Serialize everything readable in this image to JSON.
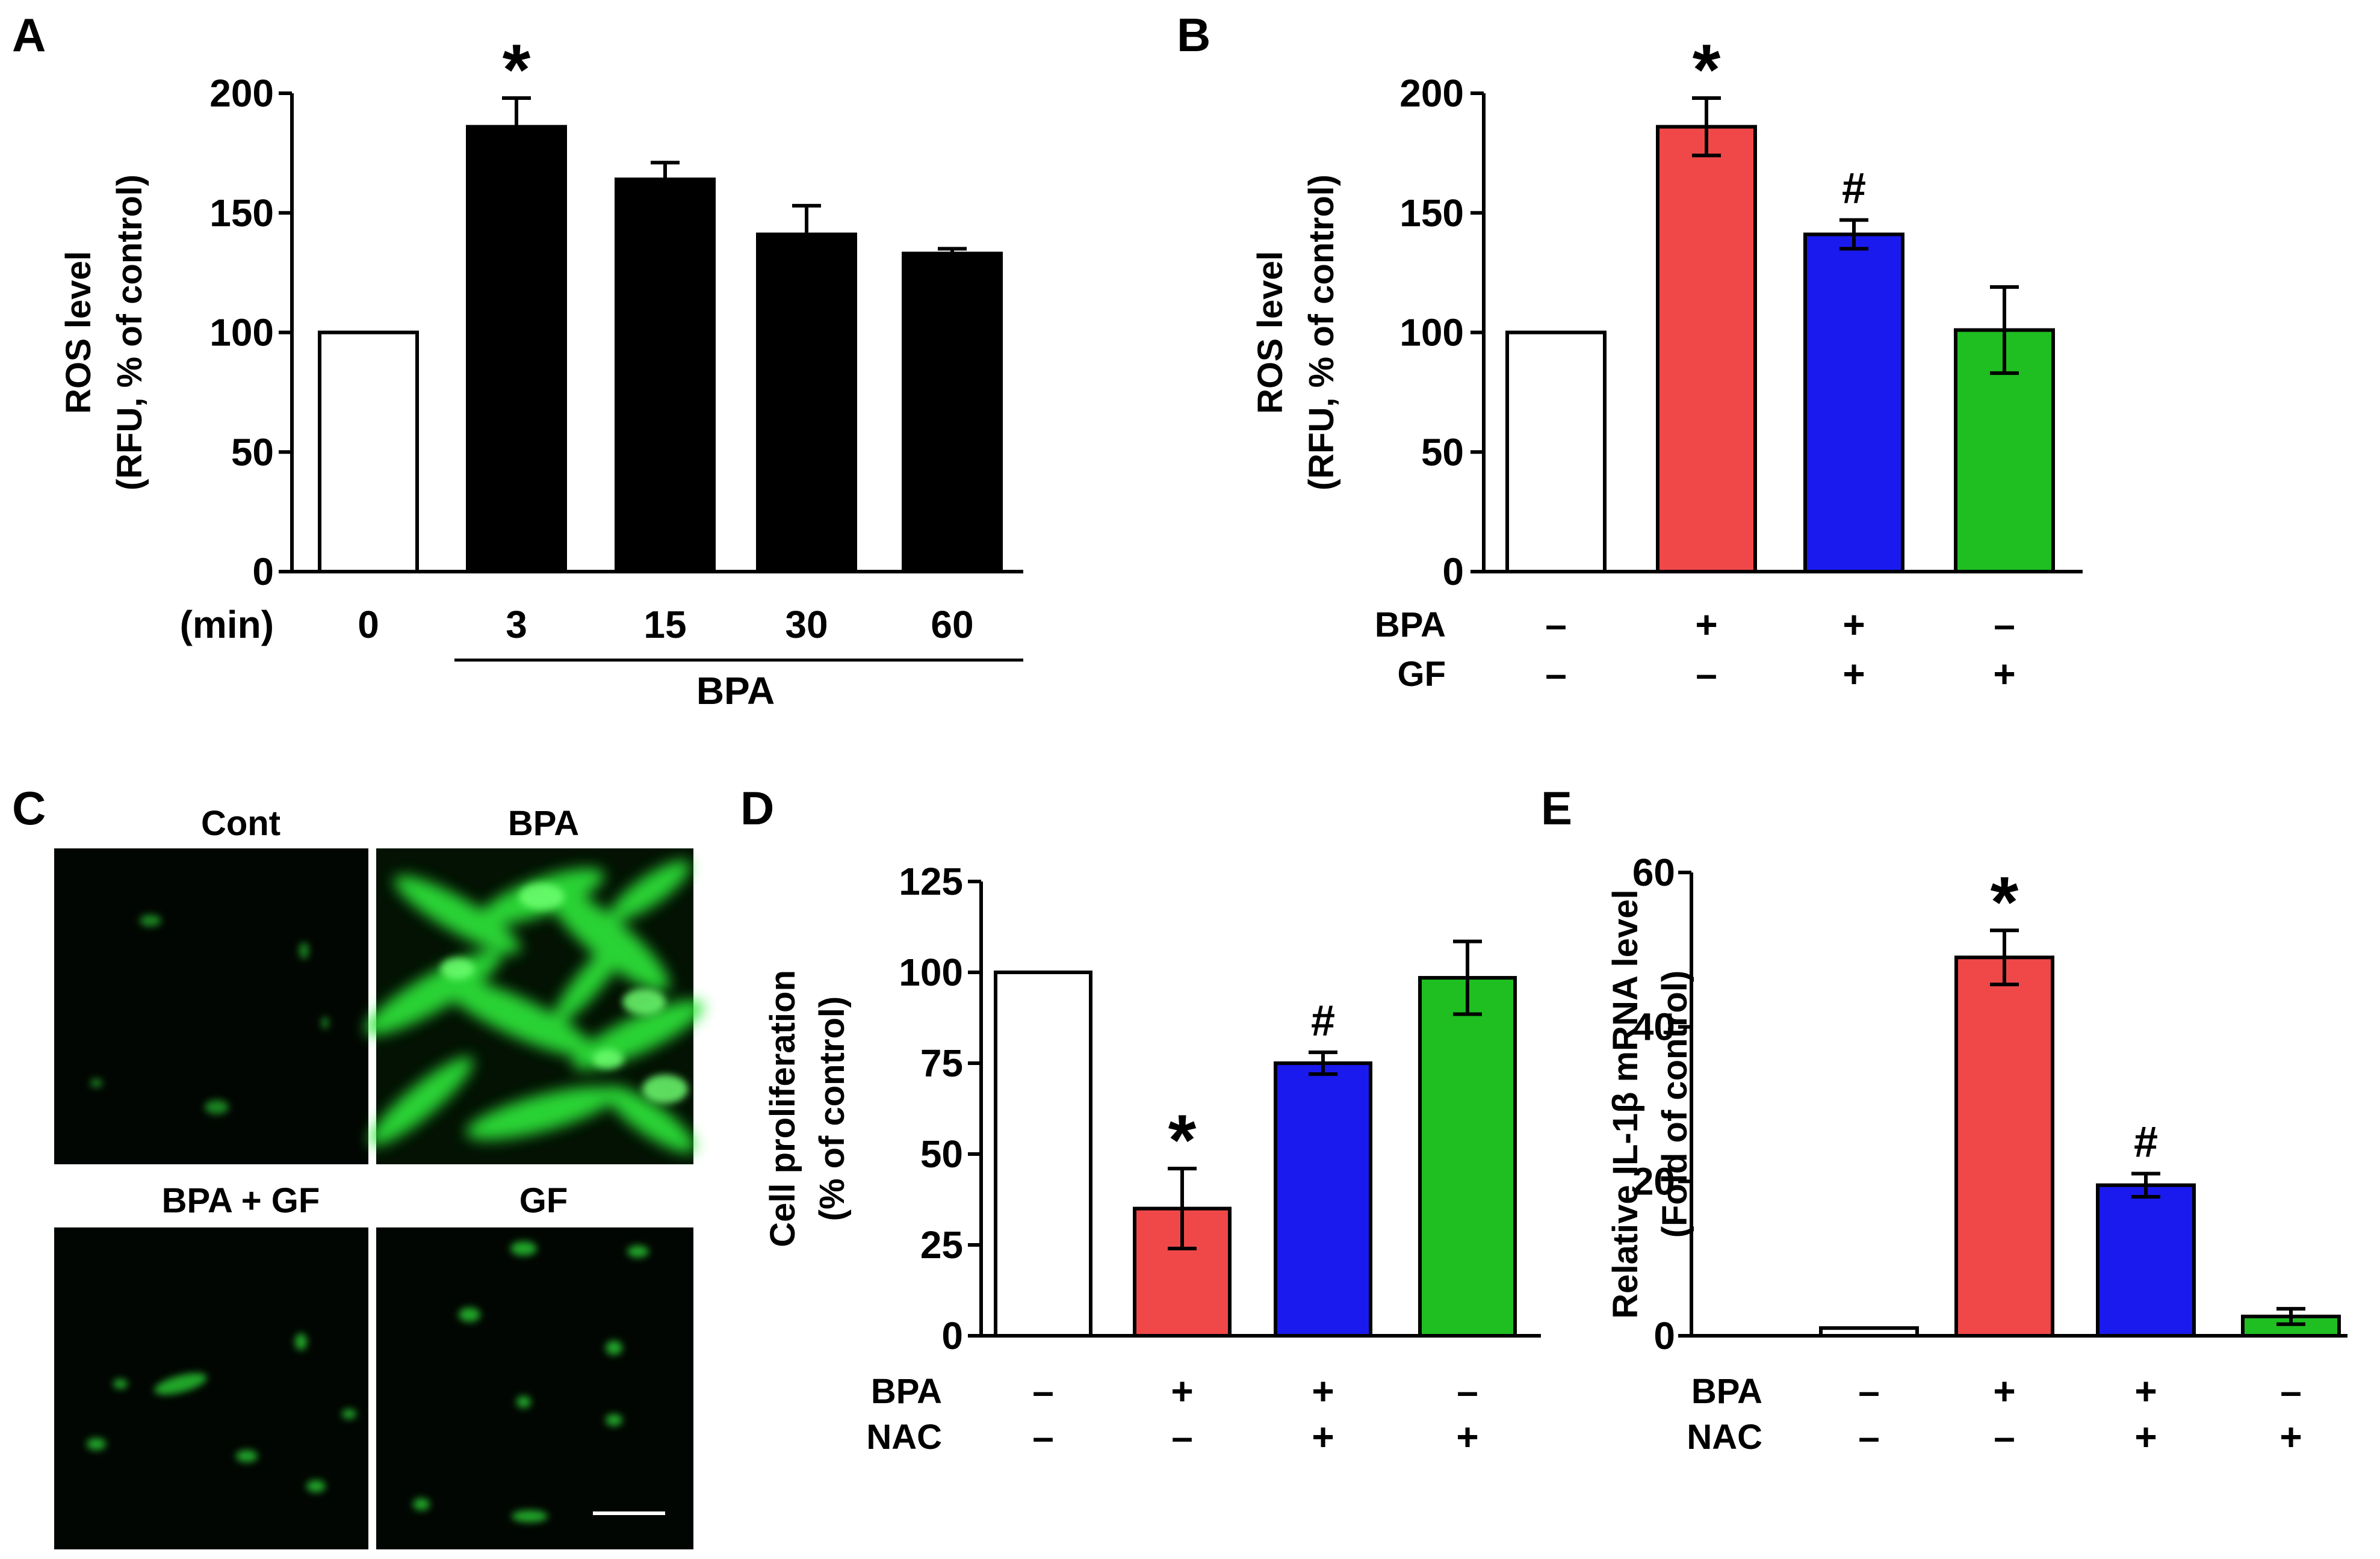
{
  "colors": {
    "control": "#ffffff",
    "black": "#000000",
    "bpa": "#f04848",
    "combo": "#1a1aee",
    "treatment": "#1fbf22",
    "fluor": "#2ee83a",
    "micro_bg": "#020602"
  },
  "chart_data": [
    {
      "panel": "A",
      "type": "bar",
      "title": "",
      "ylabel_line1": "ROS level",
      "ylabel_line2": "(RFU, % of control)",
      "ylim": [
        0,
        200
      ],
      "yticks": [
        "0",
        "50",
        "100",
        "150",
        "200"
      ],
      "xlabel_prefix": "(min)",
      "categories": [
        "0",
        "3",
        "15",
        "30",
        "60"
      ],
      "group_label": "BPA",
      "values": [
        100,
        186,
        164,
        141,
        133
      ],
      "errors": [
        0,
        12,
        7,
        12,
        2
      ],
      "fills": [
        "#ffffff",
        "#000000",
        "#000000",
        "#000000",
        "#000000"
      ],
      "annotations": [
        {
          "bar": 1,
          "text": "*"
        }
      ]
    },
    {
      "panel": "B",
      "type": "bar",
      "ylabel_line1": "ROS level",
      "ylabel_line2": "(RFU, % of control)",
      "ylim": [
        0,
        200
      ],
      "yticks": [
        "0",
        "50",
        "100",
        "150",
        "200"
      ],
      "values": [
        100,
        186,
        141,
        101
      ],
      "errors": [
        0,
        12,
        6,
        18
      ],
      "fills": [
        "#ffffff",
        "#f04848",
        "#1a1aee",
        "#1fbf22"
      ],
      "rows": [
        {
          "label": "BPA",
          "signs": [
            "–",
            "+",
            "+",
            "–"
          ]
        },
        {
          "label": "GF",
          "signs": [
            "–",
            "–",
            "+",
            "+"
          ]
        }
      ],
      "annotations": [
        {
          "bar": 1,
          "text": "*"
        },
        {
          "bar": 2,
          "text": "#"
        }
      ]
    },
    {
      "panel": "D",
      "type": "bar",
      "ylabel_line1": "Cell proliferation",
      "ylabel_line2": "(% of control)",
      "ylim": [
        0,
        125
      ],
      "yticks": [
        "0",
        "25",
        "50",
        "75",
        "100",
        "125"
      ],
      "values": [
        100,
        35,
        75,
        98.5
      ],
      "errors": [
        0,
        11,
        3,
        10
      ],
      "fills": [
        "#ffffff",
        "#f04848",
        "#1a1aee",
        "#1fbf22"
      ],
      "rows": [
        {
          "label": "BPA",
          "signs": [
            "–",
            "+",
            "+",
            "–"
          ]
        },
        {
          "label": "NAC",
          "signs": [
            "–",
            "–",
            "+",
            "+"
          ]
        }
      ],
      "annotations": [
        {
          "bar": 1,
          "text": "*"
        },
        {
          "bar": 2,
          "text": "#"
        }
      ]
    },
    {
      "panel": "E",
      "type": "bar",
      "ylabel_line1": "Relative IL-1β mRNA level",
      "ylabel_line2": "(Fold of control)",
      "ylim": [
        0,
        60
      ],
      "yticks": [
        "0",
        "20",
        "40",
        "60"
      ],
      "values": [
        1,
        49,
        19.5,
        2.5
      ],
      "errors": [
        0,
        3.5,
        1.5,
        1
      ],
      "fills": [
        "#ffffff",
        "#f04848",
        "#1a1aee",
        "#1fbf22"
      ],
      "rows": [
        {
          "label": "BPA",
          "signs": [
            "–",
            "+",
            "+",
            "–"
          ]
        },
        {
          "label": "NAC",
          "signs": [
            "–",
            "–",
            "+",
            "+"
          ]
        }
      ],
      "annotations": [
        {
          "bar": 1,
          "text": "*"
        },
        {
          "bar": 2,
          "text": "#"
        }
      ]
    }
  ],
  "panel_c": {
    "letter": "C",
    "images": [
      {
        "title": "Cont",
        "intensity": "low"
      },
      {
        "title": "BPA",
        "intensity": "high"
      },
      {
        "title": "BPA + GF",
        "intensity": "low"
      },
      {
        "title": "GF",
        "intensity": "low",
        "scale_bar": true
      }
    ]
  }
}
